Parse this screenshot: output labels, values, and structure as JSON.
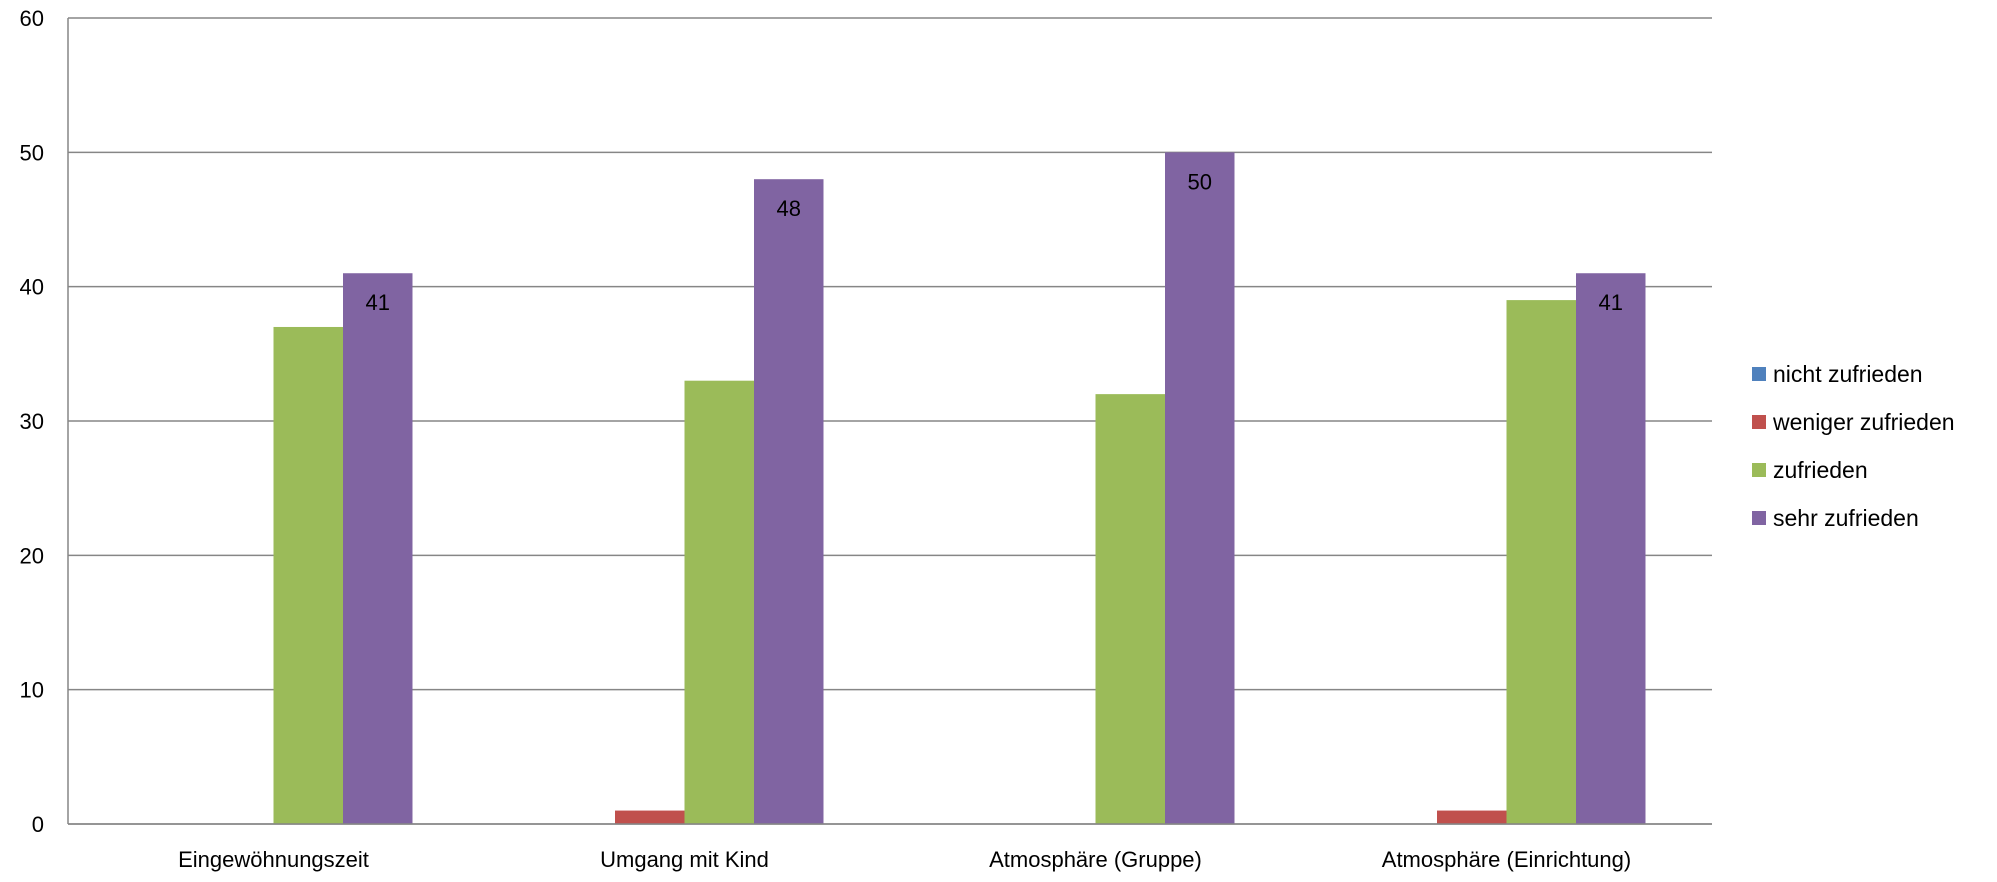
{
  "chart_data": {
    "type": "bar",
    "categories": [
      "Eingewöhnungszeit",
      "Umgang mit Kind",
      "Atmosphäre (Gruppe)",
      "Atmosphäre (Einrichtung)"
    ],
    "series": [
      {
        "name": "nicht zufrieden",
        "color": "#4F81BD",
        "values": [
          0,
          0,
          0,
          0
        ]
      },
      {
        "name": "weniger zufrieden",
        "color": "#C0504D",
        "values": [
          0,
          1,
          0,
          1
        ]
      },
      {
        "name": "zufrieden",
        "color": "#9BBB59",
        "values": [
          37,
          33,
          32,
          39
        ]
      },
      {
        "name": "sehr zufrieden",
        "color": "#8064A2",
        "values": [
          41,
          48,
          50,
          41
        ]
      }
    ],
    "data_labels": {
      "series": "sehr zufrieden",
      "values": [
        "41",
        "48",
        "50",
        "41"
      ]
    },
    "y_ticks": [
      "0",
      "10",
      "20",
      "30",
      "40",
      "50",
      "60"
    ],
    "ylim": [
      0,
      60
    ],
    "grid": true,
    "legend_position": "right"
  }
}
